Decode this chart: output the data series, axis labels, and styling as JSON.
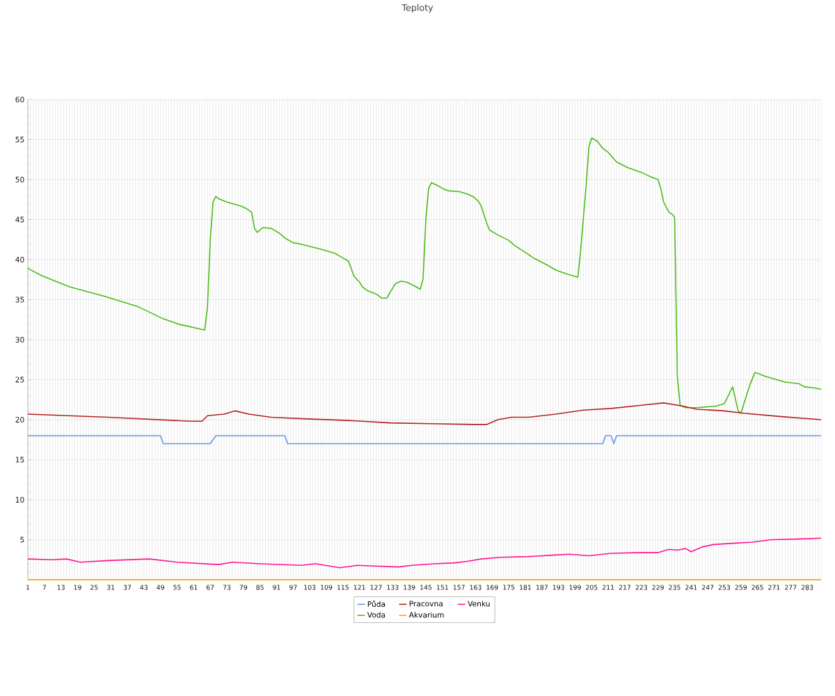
{
  "chart_data": {
    "type": "line",
    "title": "Teploty",
    "xlim": [
      1,
      288
    ],
    "xticks": [
      1,
      {
        "value": 2,
        "label": null
      },
      {
        "value": 3,
        "label": null
      },
      {
        "value": 4,
        "label": null
      },
      {
        "value": 5,
        "label": null
      },
      {
        "value": 6,
        "label": null
      },
      7,
      {
        "value": 8,
        "label": null
      },
      {
        "value": 9,
        "label": null
      },
      {
        "value": 10,
        "label": null
      },
      {
        "value": 11,
        "label": null
      },
      {
        "value": 12,
        "label": null
      },
      13,
      {
        "value": 14,
        "label": null
      },
      {
        "value": 15,
        "label": null
      },
      {
        "value": 16,
        "label": null
      },
      {
        "value": 17,
        "label": null
      },
      {
        "value": 18,
        "label": null
      },
      19,
      {
        "value": 20,
        "label": null
      },
      {
        "value": 21,
        "label": null
      },
      {
        "value": 22,
        "label": null
      },
      {
        "value": 23,
        "label": null
      },
      {
        "value": 24,
        "label": null
      },
      25,
      {
        "value": 26,
        "label": null
      },
      {
        "value": 27,
        "label": null
      },
      {
        "value": 28,
        "label": null
      },
      {
        "value": 29,
        "label": null
      },
      {
        "value": 30,
        "label": null
      },
      31,
      {
        "value": 32,
        "label": null
      },
      {
        "value": 33,
        "label": null
      },
      {
        "value": 34,
        "label": null
      },
      {
        "value": 35,
        "label": null
      },
      {
        "value": 36,
        "label": null
      },
      37,
      {
        "value": 38,
        "label": null
      },
      {
        "value": 39,
        "label": null
      },
      {
        "value": 40,
        "label": null
      },
      {
        "value": 41,
        "label": null
      },
      {
        "value": 42,
        "label": null
      },
      43,
      {
        "value": 44,
        "label": null
      },
      {
        "value": 45,
        "label": null
      },
      {
        "value": 46,
        "label": null
      },
      {
        "value": 47,
        "label": null
      },
      {
        "value": 48,
        "label": null
      },
      49,
      {
        "value": 50,
        "label": null
      },
      {
        "value": 51,
        "label": null
      },
      {
        "value": 52,
        "label": null
      },
      {
        "value": 53,
        "label": null
      },
      {
        "value": 54,
        "label": null
      },
      55,
      {
        "value": 56,
        "label": null
      },
      {
        "value": 57,
        "label": null
      },
      {
        "value": 58,
        "label": null
      },
      {
        "value": 59,
        "label": null
      },
      {
        "value": 60,
        "label": null
      },
      61,
      {
        "value": 62,
        "label": null
      },
      {
        "value": 63,
        "label": null
      },
      {
        "value": 64,
        "label": null
      },
      {
        "value": 65,
        "label": null
      },
      {
        "value": 66,
        "label": null
      },
      67,
      {
        "value": 68,
        "label": null
      },
      {
        "value": 69,
        "label": null
      },
      {
        "value": 70,
        "label": null
      },
      {
        "value": 71,
        "label": null
      },
      {
        "value": 72,
        "label": null
      },
      73,
      {
        "value": 74,
        "label": null
      },
      {
        "value": 75,
        "label": null
      },
      {
        "value": 76,
        "label": null
      },
      {
        "value": 77,
        "label": null
      },
      {
        "value": 78,
        "label": null
      },
      79,
      {
        "value": 80,
        "label": null
      },
      {
        "value": 81,
        "label": null
      },
      {
        "value": 82,
        "label": null
      },
      {
        "value": 83,
        "label": null
      },
      {
        "value": 84,
        "label": null
      },
      85,
      {
        "value": 86,
        "label": null
      },
      {
        "value": 87,
        "label": null
      },
      {
        "value": 88,
        "label": null
      },
      {
        "value": 89,
        "label": null
      },
      {
        "value": 90,
        "label": null
      },
      91,
      {
        "value": 92,
        "label": null
      },
      {
        "value": 93,
        "label": null
      },
      {
        "value": 94,
        "label": null
      },
      {
        "value": 95,
        "label": null
      },
      {
        "value": 96,
        "label": null
      },
      97,
      {
        "value": 98,
        "label": null
      },
      {
        "value": 99,
        "label": null
      },
      {
        "value": 100,
        "label": null
      },
      {
        "value": 101,
        "label": null
      },
      {
        "value": 102,
        "label": null
      },
      103,
      {
        "value": 104,
        "label": null
      },
      {
        "value": 105,
        "label": null
      },
      {
        "value": 106,
        "label": null
      },
      {
        "value": 107,
        "label": null
      },
      {
        "value": 108,
        "label": null
      },
      109,
      {
        "value": 110,
        "label": null
      },
      {
        "value": 111,
        "label": null
      },
      {
        "value": 112,
        "label": null
      },
      {
        "value": 113,
        "label": null
      },
      {
        "value": 114,
        "label": null
      },
      115,
      {
        "value": 116,
        "label": null
      },
      {
        "value": 117,
        "label": null
      },
      {
        "value": 118,
        "label": null
      },
      {
        "value": 119,
        "label": null
      },
      {
        "value": 120,
        "label": null
      },
      121,
      {
        "value": 122,
        "label": null
      },
      {
        "value": 123,
        "label": null
      },
      {
        "value": 124,
        "label": null
      },
      {
        "value": 125,
        "label": null
      },
      {
        "value": 126,
        "label": null
      },
      127,
      {
        "value": 128,
        "label": null
      },
      {
        "value": 129,
        "label": null
      },
      {
        "value": 130,
        "label": null
      },
      {
        "value": 131,
        "label": null
      },
      {
        "value": 132,
        "label": null
      },
      133,
      {
        "value": 134,
        "label": null
      },
      {
        "value": 135,
        "label": null
      },
      {
        "value": 136,
        "label": null
      },
      {
        "value": 137,
        "label": null
      },
      {
        "value": 138,
        "label": null
      },
      139,
      {
        "value": 140,
        "label": null
      },
      {
        "value": 141,
        "label": null
      },
      {
        "value": 142,
        "label": null
      },
      {
        "value": 143,
        "label": null
      },
      {
        "value": 144,
        "label": null
      },
      145,
      {
        "value": 146,
        "label": null
      },
      {
        "value": 147,
        "label": null
      },
      {
        "value": 148,
        "label": null
      },
      {
        "value": 149,
        "label": null
      },
      {
        "value": 150,
        "label": null
      },
      151,
      {
        "value": 152,
        "label": null
      },
      {
        "value": 153,
        "label": null
      },
      {
        "value": 154,
        "label": null
      },
      {
        "value": 155,
        "label": null
      },
      {
        "value": 156,
        "label": null
      },
      157,
      {
        "value": 158,
        "label": null
      },
      {
        "value": 159,
        "label": null
      },
      {
        "value": 160,
        "label": null
      },
      {
        "value": 161,
        "label": null
      },
      {
        "value": 162,
        "label": null
      },
      163,
      {
        "value": 164,
        "label": null
      },
      {
        "value": 165,
        "label": null
      },
      {
        "value": 166,
        "label": null
      },
      {
        "value": 167,
        "label": null
      },
      {
        "value": 168,
        "label": null
      },
      169,
      {
        "value": 170,
        "label": null
      },
      {
        "value": 171,
        "label": null
      },
      {
        "value": 172,
        "label": null
      },
      {
        "value": 173,
        "label": null
      },
      {
        "value": 174,
        "label": null
      },
      175,
      {
        "value": 176,
        "label": null
      },
      {
        "value": 177,
        "label": null
      },
      {
        "value": 178,
        "label": null
      },
      {
        "value": 179,
        "label": null
      },
      {
        "value": 180,
        "label": null
      },
      181,
      {
        "value": 182,
        "label": null
      },
      {
        "value": 183,
        "label": null
      },
      {
        "value": 184,
        "label": null
      },
      {
        "value": 185,
        "label": null
      },
      {
        "value": 186,
        "label": null
      },
      187,
      {
        "value": 188,
        "label": null
      },
      {
        "value": 189,
        "label": null
      },
      {
        "value": 190,
        "label": null
      },
      {
        "value": 191,
        "label": null
      },
      {
        "value": 192,
        "label": null
      },
      193,
      {
        "value": 194,
        "label": null
      },
      {
        "value": 195,
        "label": null
      },
      {
        "value": 196,
        "label": null
      },
      {
        "value": 197,
        "label": null
      },
      {
        "value": 198,
        "label": null
      },
      199,
      {
        "value": 200,
        "label": null
      },
      {
        "value": 201,
        "label": null
      },
      {
        "value": 202,
        "label": null
      },
      {
        "value": 203,
        "label": null
      },
      {
        "value": 204,
        "label": null
      },
      205,
      {
        "value": 206,
        "label": null
      },
      {
        "value": 207,
        "label": null
      },
      {
        "value": 208,
        "label": null
      },
      {
        "value": 209,
        "label": null
      },
      {
        "value": 210,
        "label": null
      },
      211,
      {
        "value": 212,
        "label": null
      },
      {
        "value": 213,
        "label": null
      },
      {
        "value": 214,
        "label": null
      },
      {
        "value": 215,
        "label": null
      },
      {
        "value": 216,
        "label": null
      },
      217,
      {
        "value": 218,
        "label": null
      },
      {
        "value": 219,
        "label": null
      },
      {
        "value": 220,
        "label": null
      },
      {
        "value": 221,
        "label": null
      },
      {
        "value": 222,
        "label": null
      },
      223,
      {
        "value": 224,
        "label": null
      },
      {
        "value": 225,
        "label": null
      },
      {
        "value": 226,
        "label": null
      },
      {
        "value": 227,
        "label": null
      },
      {
        "value": 228,
        "label": null
      },
      229,
      {
        "value": 230,
        "label": null
      },
      {
        "value": 231,
        "label": null
      },
      {
        "value": 232,
        "label": null
      },
      {
        "value": 233,
        "label": null
      },
      {
        "value": 234,
        "label": null
      },
      235,
      {
        "value": 236,
        "label": null
      },
      {
        "value": 237,
        "label": null
      },
      {
        "value": 238,
        "label": null
      },
      {
        "value": 239,
        "label": null
      },
      {
        "value": 240,
        "label": null
      },
      241,
      {
        "value": 242,
        "label": null
      },
      {
        "value": 243,
        "label": null
      },
      {
        "value": 244,
        "label": null
      },
      {
        "value": 245,
        "label": null
      },
      {
        "value": 246,
        "label": null
      },
      247,
      {
        "value": 248,
        "label": null
      },
      {
        "value": 249,
        "label": null
      },
      {
        "value": 250,
        "label": null
      },
      {
        "value": 251,
        "label": null
      },
      {
        "value": 252,
        "label": null
      },
      253,
      {
        "value": 254,
        "label": null
      },
      {
        "value": 255,
        "label": null
      },
      {
        "value": 256,
        "label": null
      },
      {
        "value": 257,
        "label": null
      },
      {
        "value": 258,
        "label": null
      },
      259,
      {
        "value": 260,
        "label": null
      },
      {
        "value": 261,
        "label": null
      },
      {
        "value": 262,
        "label": null
      },
      {
        "value": 263,
        "label": null
      },
      {
        "value": 264,
        "label": null
      },
      265,
      {
        "value": 266,
        "label": null
      },
      {
        "value": 267,
        "label": null
      },
      {
        "value": 268,
        "label": null
      },
      {
        "value": 269,
        "label": null
      },
      {
        "value": 270,
        "label": null
      },
      271,
      {
        "value": 272,
        "label": null
      },
      {
        "value": 273,
        "label": null
      },
      {
        "value": 274,
        "label": null
      },
      {
        "value": 275,
        "label": null
      },
      {
        "value": 276,
        "label": null
      },
      277,
      {
        "value": 278,
        "label": null
      },
      {
        "value": 279,
        "label": null
      },
      {
        "value": 280,
        "label": null
      },
      {
        "value": 281,
        "label": null
      },
      {
        "value": 282,
        "label": null
      },
      283,
      {
        "value": 284,
        "label": null
      },
      {
        "value": 285,
        "label": null
      },
      {
        "value": 286,
        "label": null
      },
      {
        "value": 287,
        "label": null
      },
      {
        "value": 288,
        "label": null
      }
    ],
    "ylim": [
      0,
      60
    ],
    "yticks": [
      {
        "value": 0,
        "label": null
      },
      5,
      10,
      15,
      20,
      25,
      30,
      35,
      40,
      45,
      50,
      55,
      60
    ],
    "grid": true,
    "legend": "bottom",
    "marker": "none",
    "line_style": "solid",
    "series": [
      {
        "name": "Půda",
        "color": "#6495ed",
        "x": [
          1,
          49,
          50,
          67,
          69,
          94,
          95,
          209,
          210,
          212,
          213,
          214,
          288
        ],
        "values": [
          18,
          18,
          17,
          17,
          18,
          18,
          17,
          17,
          18,
          18,
          17,
          18,
          18
        ]
      },
      {
        "name": "Voda",
        "color": "#4cbb17",
        "x": [
          1,
          6,
          16,
          29,
          41,
          50,
          56,
          65,
          66,
          67,
          68,
          69,
          70,
          73,
          78,
          80,
          82,
          83,
          84,
          86,
          89,
          92,
          94,
          97,
          99,
          107,
          112,
          114,
          117,
          118,
          119,
          121,
          122,
          124,
          127,
          129,
          131,
          132,
          134,
          136,
          138,
          141,
          143,
          144,
          145,
          146,
          147,
          149,
          151,
          153,
          157,
          160,
          162,
          164,
          165,
          167,
          168,
          171,
          175,
          177,
          181,
          184,
          189,
          192,
          196,
          200,
          201,
          203,
          204,
          205,
          207,
          209,
          211,
          214,
          218,
          223,
          226,
          229,
          230,
          231,
          233,
          234,
          235,
          236,
          237,
          239,
          243,
          250,
          253,
          256,
          258,
          259,
          262,
          264,
          265,
          268,
          270,
          275,
          280,
          282,
          285,
          288
        ],
        "values": [
          38.9,
          38.0,
          36.6,
          35.4,
          34.1,
          32.6,
          31.9,
          31.2,
          34.1,
          42.4,
          47.2,
          47.9,
          47.6,
          47.2,
          46.7,
          46.4,
          45.9,
          43.9,
          43.4,
          44.0,
          43.9,
          43.3,
          42.7,
          42.1,
          42.0,
          41.3,
          40.8,
          40.4,
          39.8,
          38.9,
          37.9,
          37.2,
          36.6,
          36.1,
          35.7,
          35.2,
          35.2,
          35.9,
          37.0,
          37.3,
          37.2,
          36.7,
          36.3,
          37.6,
          45.0,
          48.9,
          49.6,
          49.3,
          48.9,
          48.6,
          48.5,
          48.2,
          47.9,
          47.3,
          46.7,
          44.6,
          43.7,
          43.1,
          42.4,
          41.8,
          40.9,
          40.2,
          39.3,
          38.7,
          38.2,
          37.8,
          41.1,
          49.3,
          54.1,
          55.2,
          54.8,
          53.9,
          53.4,
          52.2,
          51.5,
          50.9,
          50.4,
          50.0,
          48.9,
          47.2,
          45.9,
          45.7,
          45.3,
          25.4,
          21.8,
          21.5,
          21.5,
          21.7,
          22.0,
          24.1,
          21.1,
          20.8,
          24.1,
          25.9,
          25.8,
          25.4,
          25.2,
          24.7,
          24.5,
          24.1,
          24.0,
          23.8
        ]
      },
      {
        "name": "Pracovna",
        "color": "#b22222",
        "x": [
          1,
          30,
          60,
          64,
          66,
          72,
          76,
          81,
          89,
          102,
          117,
          132,
          147,
          162,
          167,
          171,
          176,
          182,
          192,
          202,
          212,
          223,
          231,
          238,
          243,
          253,
          260,
          273,
          288
        ],
        "values": [
          20.7,
          20.3,
          19.8,
          19.8,
          20.5,
          20.7,
          21.1,
          20.7,
          20.3,
          20.1,
          19.9,
          19.6,
          19.5,
          19.4,
          19.4,
          20.0,
          20.3,
          20.3,
          20.7,
          21.2,
          21.4,
          21.8,
          22.1,
          21.7,
          21.3,
          21.1,
          20.8,
          20.4,
          20.0
        ]
      },
      {
        "name": "Akvarium",
        "color": "#ffa500",
        "x": [
          1,
          288
        ],
        "values": [
          0,
          0
        ]
      },
      {
        "name": "Venku",
        "color": "#ff1493",
        "x": [
          1,
          10,
          15,
          20,
          30,
          45,
          55,
          65,
          70,
          75,
          85,
          100,
          105,
          114,
          120,
          135,
          140,
          148,
          155,
          160,
          165,
          172,
          182,
          192,
          197,
          204,
          212,
          223,
          229,
          233,
          236,
          239,
          241,
          245,
          249,
          258,
          263,
          270,
          280,
          288
        ],
        "values": [
          2.6,
          2.5,
          2.6,
          2.2,
          2.4,
          2.6,
          2.2,
          2.0,
          1.9,
          2.2,
          2.0,
          1.8,
          2.0,
          1.5,
          1.8,
          1.6,
          1.8,
          2.0,
          2.1,
          2.3,
          2.6,
          2.8,
          2.9,
          3.1,
          3.2,
          3.0,
          3.3,
          3.4,
          3.4,
          3.8,
          3.7,
          3.9,
          3.5,
          4.1,
          4.4,
          4.6,
          4.7,
          5.0,
          5.1,
          5.2
        ]
      }
    ]
  }
}
